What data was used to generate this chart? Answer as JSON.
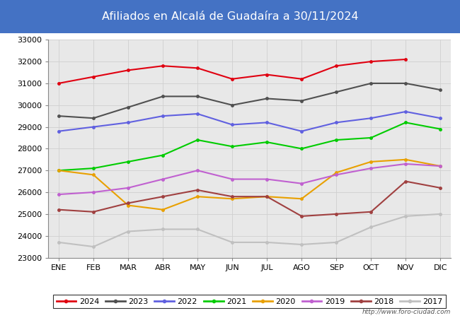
{
  "title": "Afiliados en Alcalá de Guadaíra a 30/11/2024",
  "title_bg_color": "#4472c4",
  "title_font_color": "white",
  "ylim": [
    23000,
    33000
  ],
  "yticks": [
    23000,
    24000,
    25000,
    26000,
    27000,
    28000,
    29000,
    30000,
    31000,
    32000,
    33000
  ],
  "months": [
    "ENE",
    "FEB",
    "MAR",
    "ABR",
    "MAY",
    "JUN",
    "JUL",
    "AGO",
    "SEP",
    "OCT",
    "NOV",
    "DIC"
  ],
  "url": "http://www.foro-ciudad.com",
  "series": {
    "2024": {
      "color": "#e00010",
      "data": [
        31000,
        31300,
        31600,
        31800,
        31700,
        31200,
        31400,
        31200,
        31800,
        32000,
        32100,
        null
      ]
    },
    "2023": {
      "color": "#505050",
      "data": [
        29500,
        29400,
        29900,
        30400,
        30400,
        30000,
        30300,
        30200,
        30600,
        31000,
        31000,
        30700
      ]
    },
    "2022": {
      "color": "#6060e0",
      "data": [
        28800,
        29000,
        29200,
        29500,
        29600,
        29100,
        29200,
        28800,
        29200,
        29400,
        29700,
        29400
      ]
    },
    "2021": {
      "color": "#00cc00",
      "data": [
        27000,
        27100,
        27400,
        27700,
        28400,
        28100,
        28300,
        28000,
        28400,
        28500,
        29200,
        28900
      ]
    },
    "2020": {
      "color": "#e8a000",
      "data": [
        27000,
        26800,
        25400,
        25200,
        25800,
        25700,
        25800,
        25700,
        26900,
        27400,
        27500,
        27200
      ]
    },
    "2019": {
      "color": "#c060d0",
      "data": [
        25900,
        26000,
        26200,
        26600,
        27000,
        26600,
        26600,
        26400,
        26800,
        27100,
        27300,
        27200
      ]
    },
    "2018": {
      "color": "#a04040",
      "data": [
        25200,
        25100,
        25500,
        25800,
        26100,
        25800,
        25800,
        24900,
        25000,
        25100,
        26500,
        26200
      ]
    },
    "2017": {
      "color": "#c0c0c0",
      "data": [
        23700,
        23500,
        24200,
        24300,
        24300,
        23700,
        23700,
        23600,
        23700,
        24400,
        24900,
        25000
      ]
    }
  }
}
